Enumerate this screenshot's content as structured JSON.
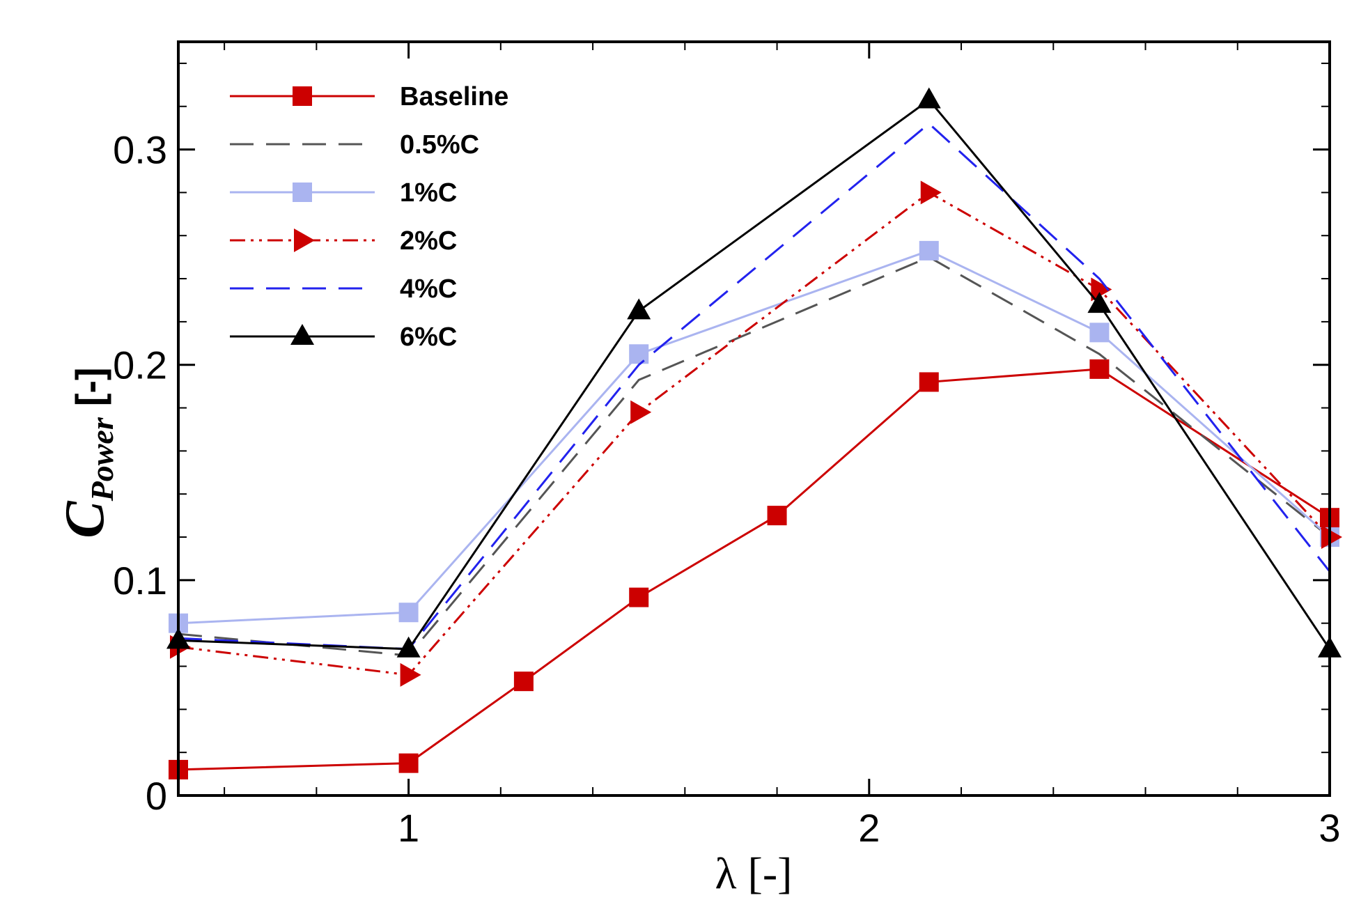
{
  "chart_data": {
    "type": "line",
    "title": "",
    "xlabel": "λ [-]",
    "ylabel_main": "C",
    "ylabel_sub": "Power",
    "ylabel_unit": "[-]",
    "xlim": [
      0.5,
      3.0
    ],
    "ylim": [
      0.0,
      0.35
    ],
    "grid": false,
    "legend_position": "top-left",
    "x_ticks": [
      {
        "value": 1,
        "label": "1"
      },
      {
        "value": 2,
        "label": "2"
      },
      {
        "value": 3,
        "label": "3"
      }
    ],
    "x_minor_ticks": [
      0.6,
      0.8,
      1.2,
      1.4,
      1.6,
      1.8,
      2.2,
      2.4,
      2.6,
      2.8
    ],
    "y_ticks": [
      {
        "value": 0,
        "label": "0"
      },
      {
        "value": 0.1,
        "label": "0.1"
      },
      {
        "value": 0.2,
        "label": "0.2"
      },
      {
        "value": 0.3,
        "label": "0.3"
      }
    ],
    "y_minor_ticks": [
      0.02,
      0.04,
      0.06,
      0.08,
      0.12,
      0.14,
      0.16,
      0.18,
      0.22,
      0.24,
      0.26,
      0.28,
      0.32,
      0.34
    ],
    "series": [
      {
        "name": "Baseline",
        "color": "#cc0000",
        "dash": "",
        "stroke_width": 3,
        "marker": "square",
        "x": [
          0.5,
          1.0,
          1.25,
          1.5,
          1.8,
          2.13,
          2.5,
          3.0
        ],
        "values": [
          0.012,
          0.015,
          0.053,
          0.092,
          0.13,
          0.192,
          0.198,
          0.129
        ]
      },
      {
        "name": "0.5%C",
        "color": "#555555",
        "dash": "34 18",
        "stroke_width": 3,
        "marker": "none",
        "x": [
          0.5,
          1.0,
          1.5,
          2.13,
          2.5,
          3.0
        ],
        "values": [
          0.075,
          0.065,
          0.193,
          0.25,
          0.205,
          0.12
        ]
      },
      {
        "name": "1%C",
        "color": "#aab4f0",
        "dash": "",
        "stroke_width": 3,
        "marker": "square",
        "x": [
          0.5,
          1.0,
          1.5,
          2.13,
          2.5,
          3.0
        ],
        "values": [
          0.08,
          0.085,
          0.205,
          0.253,
          0.215,
          0.12
        ]
      },
      {
        "name": "2%C",
        "color": "#cc0000",
        "dash": "22 8 4 8 4 8",
        "stroke_width": 3,
        "marker": "triangle-right",
        "x": [
          0.5,
          1.0,
          1.5,
          2.13,
          2.5,
          3.0
        ],
        "values": [
          0.069,
          0.056,
          0.178,
          0.28,
          0.235,
          0.12
        ]
      },
      {
        "name": "4%C",
        "color": "#2222ee",
        "dash": "34 18",
        "stroke_width": 3,
        "marker": "none",
        "x": [
          0.5,
          1.0,
          1.5,
          2.13,
          2.5,
          3.0
        ],
        "values": [
          0.073,
          0.068,
          0.2,
          0.312,
          0.24,
          0.104
        ]
      },
      {
        "name": "6%C",
        "color": "#000000",
        "dash": "",
        "stroke_width": 3,
        "marker": "triangle-up",
        "x": [
          0.5,
          1.0,
          1.5,
          2.13,
          2.5,
          3.0
        ],
        "values": [
          0.072,
          0.068,
          0.225,
          0.323,
          0.228,
          0.068
        ]
      }
    ]
  }
}
